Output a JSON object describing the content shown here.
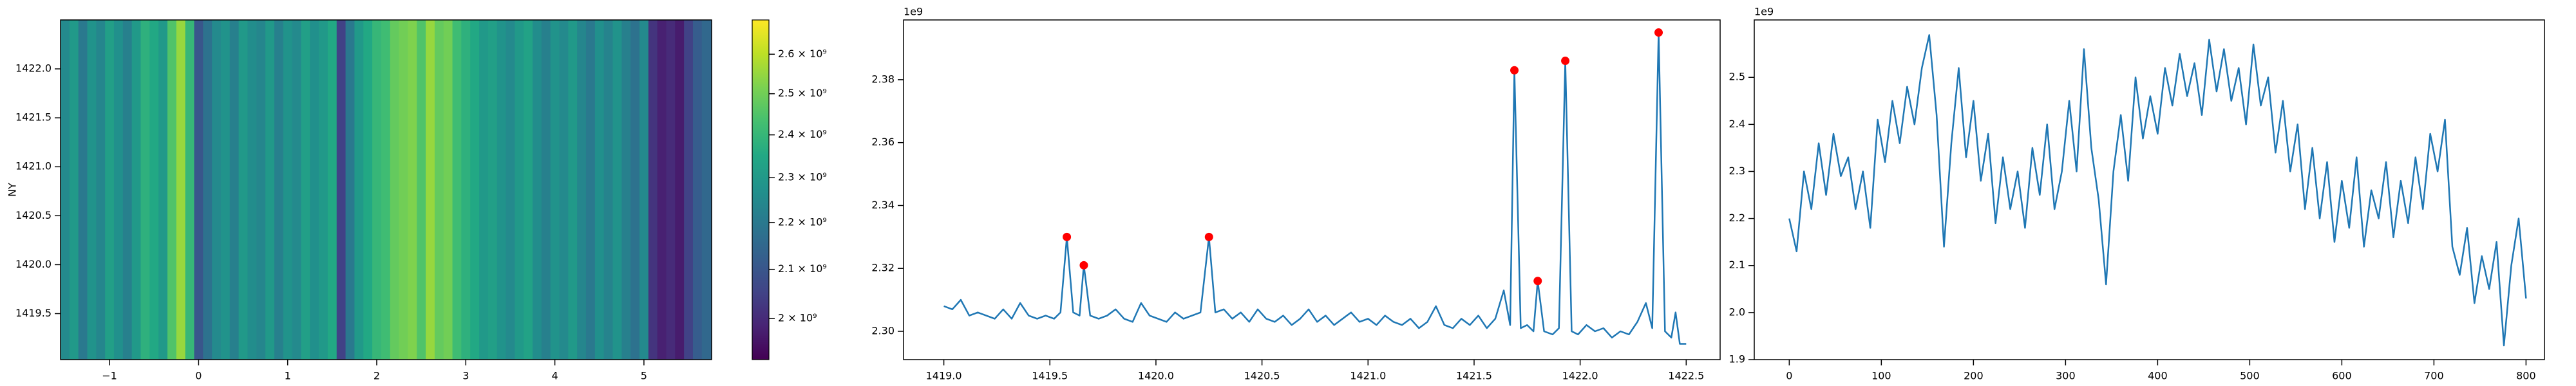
{
  "chart_data": [
    {
      "type": "heatmap",
      "ylabel": "NY",
      "x": [
        -1.5,
        -1.4,
        -1.3,
        -1.2,
        -1.1,
        -1.0,
        -0.9,
        -0.8,
        -0.7,
        -0.6,
        -0.5,
        -0.4,
        -0.3,
        -0.2,
        -0.1,
        0.0,
        0.1,
        0.2,
        0.3,
        0.4,
        0.5,
        0.6,
        0.7,
        0.8,
        0.9,
        1.0,
        1.1,
        1.2,
        1.3,
        1.4,
        1.5,
        1.6,
        1.7,
        1.8,
        1.9,
        2.0,
        2.1,
        2.2,
        2.3,
        2.4,
        2.5,
        2.6,
        2.7,
        2.8,
        2.9,
        3.0,
        3.1,
        3.2,
        3.3,
        3.4,
        3.5,
        3.6,
        3.7,
        3.8,
        3.9,
        4.0,
        4.1,
        4.2,
        4.3,
        4.4,
        4.5,
        4.6,
        4.7,
        4.8,
        4.9,
        5.0,
        5.1,
        5.2,
        5.3,
        5.4,
        5.5,
        5.6,
        5.7
      ],
      "values": [
        2250000000.0,
        2300000000.0,
        2200000000.0,
        2280000000.0,
        2240000000.0,
        2320000000.0,
        2270000000.0,
        2220000000.0,
        2300000000.0,
        2380000000.0,
        2350000000.0,
        2300000000.0,
        2450000000.0,
        2550000000.0,
        2400000000.0,
        2100000000.0,
        2180000000.0,
        2250000000.0,
        2280000000.0,
        2220000000.0,
        2300000000.0,
        2260000000.0,
        2240000000.0,
        2300000000.0,
        2220000000.0,
        2280000000.0,
        2250000000.0,
        2320000000.0,
        2270000000.0,
        2300000000.0,
        2350000000.0,
        2050000000.0,
        2200000000.0,
        2300000000.0,
        2350000000.0,
        2400000000.0,
        2420000000.0,
        2480000000.0,
        2500000000.0,
        2520000000.0,
        2450000000.0,
        2550000000.0,
        2480000000.0,
        2500000000.0,
        2420000000.0,
        2380000000.0,
        2350000000.0,
        2300000000.0,
        2320000000.0,
        2280000000.0,
        2250000000.0,
        2300000000.0,
        2330000000.0,
        2260000000.0,
        2220000000.0,
        2280000000.0,
        2250000000.0,
        2300000000.0,
        2240000000.0,
        2200000000.0,
        2270000000.0,
        2230000000.0,
        2280000000.0,
        2220000000.0,
        2180000000.0,
        2250000000.0,
        2020000000.0,
        1980000000.0,
        2000000000.0,
        1970000000.0,
        2050000000.0,
        2120000000.0,
        2150000000.0
      ],
      "xlim": [
        -1.55,
        5.76
      ],
      "xticks": [
        {
          "value": -1,
          "label": "−1"
        },
        0,
        1,
        2,
        3,
        4,
        5
      ],
      "ylim": [
        1419.03,
        1422.5
      ],
      "yticks": [
        1419.5,
        {
          "value": 1420,
          "label": "1420.0"
        },
        1420.5,
        {
          "value": 1421,
          "label": "1421.0"
        },
        1421.5,
        {
          "value": 1422,
          "label": "1422.0"
        }
      ],
      "colorbar": {
        "colormap": "viridis",
        "scale": "log",
        "lim": [
          1920000000.0,
          2690000000.0
        ],
        "ticks": [
          {
            "value": 2000000000.0,
            "label": "2 × 10⁹"
          },
          {
            "value": 2100000000.0,
            "label": "2.1 × 10⁹"
          },
          {
            "value": 2200000000.0,
            "label": "2.2 × 10⁹"
          },
          {
            "value": 2300000000.0,
            "label": "2.3 × 10⁹"
          },
          {
            "value": 2400000000.0,
            "label": "2.4 × 10⁹"
          },
          {
            "value": 2500000000.0,
            "label": "2.5 × 10⁹"
          },
          {
            "value": 2600000000.0,
            "label": "2.6 × 10⁹"
          }
        ]
      }
    },
    {
      "type": "line",
      "offset_text": "1e9",
      "xlim": [
        1418.81,
        1422.66
      ],
      "xticks": [
        {
          "value": 1419,
          "label": "1419.0"
        },
        1419.5,
        {
          "value": 1420,
          "label": "1420.0"
        },
        1420.5,
        {
          "value": 1421,
          "label": "1421.0"
        },
        1421.5,
        {
          "value": 1422,
          "label": "1422.0"
        },
        1422.5
      ],
      "ylim": [
        2291000000.0,
        2399000000.0
      ],
      "yticks": [
        {
          "value": 2300000000.0,
          "label": "2.30"
        },
        {
          "value": 2320000000.0,
          "label": "2.32"
        },
        {
          "value": 2340000000.0,
          "label": "2.34"
        },
        {
          "value": 2360000000.0,
          "label": "2.36"
        },
        {
          "value": 2380000000.0,
          "label": "2.38"
        }
      ],
      "series": [
        {
          "color": "#1f77b4",
          "x": [
            1419.0,
            1419.04,
            1419.08,
            1419.12,
            1419.16,
            1419.2,
            1419.24,
            1419.28,
            1419.32,
            1419.36,
            1419.4,
            1419.44,
            1419.48,
            1419.52,
            1419.55,
            1419.58,
            1419.61,
            1419.64,
            1419.66,
            1419.69,
            1419.73,
            1419.77,
            1419.81,
            1419.85,
            1419.89,
            1419.93,
            1419.97,
            1420.01,
            1420.05,
            1420.09,
            1420.13,
            1420.17,
            1420.21,
            1420.25,
            1420.28,
            1420.32,
            1420.36,
            1420.4,
            1420.44,
            1420.48,
            1420.52,
            1420.56,
            1420.6,
            1420.64,
            1420.68,
            1420.72,
            1420.76,
            1420.8,
            1420.84,
            1420.88,
            1420.92,
            1420.96,
            1421.0,
            1421.04,
            1421.08,
            1421.12,
            1421.16,
            1421.2,
            1421.24,
            1421.28,
            1421.32,
            1421.36,
            1421.4,
            1421.44,
            1421.48,
            1421.52,
            1421.56,
            1421.6,
            1421.64,
            1421.67,
            1421.69,
            1421.72,
            1421.75,
            1421.78,
            1421.8,
            1421.83,
            1421.87,
            1421.9,
            1421.93,
            1421.96,
            1421.99,
            1422.03,
            1422.07,
            1422.11,
            1422.15,
            1422.19,
            1422.23,
            1422.27,
            1422.31,
            1422.34,
            1422.37,
            1422.4,
            1422.43,
            1422.45,
            1422.47,
            1422.5
          ],
          "values": [
            2308000000.0,
            2307000000.0,
            2310000000.0,
            2305000000.0,
            2306000000.0,
            2305000000.0,
            2304000000.0,
            2307000000.0,
            2304000000.0,
            2309000000.0,
            2305000000.0,
            2304000000.0,
            2305000000.0,
            2304000000.0,
            2306000000.0,
            2330000000.0,
            2306000000.0,
            2305000000.0,
            2321000000.0,
            2305000000.0,
            2304000000.0,
            2305000000.0,
            2307000000.0,
            2304000000.0,
            2303000000.0,
            2309000000.0,
            2305000000.0,
            2304000000.0,
            2303000000.0,
            2306000000.0,
            2304000000.0,
            2305000000.0,
            2306000000.0,
            2330000000.0,
            2306000000.0,
            2307000000.0,
            2304000000.0,
            2306000000.0,
            2303000000.0,
            2307000000.0,
            2304000000.0,
            2303000000.0,
            2305000000.0,
            2302000000.0,
            2304000000.0,
            2307000000.0,
            2303000000.0,
            2305000000.0,
            2302000000.0,
            2304000000.0,
            2306000000.0,
            2303000000.0,
            2304000000.0,
            2302000000.0,
            2305000000.0,
            2303000000.0,
            2302000000.0,
            2304000000.0,
            2301000000.0,
            2303000000.0,
            2308000000.0,
            2302000000.0,
            2301000000.0,
            2304000000.0,
            2302000000.0,
            2305000000.0,
            2301000000.0,
            2304000000.0,
            2313000000.0,
            2302000000.0,
            2383000000.0,
            2301000000.0,
            2302000000.0,
            2300000000.0,
            2316000000.0,
            2300000000.0,
            2299000000.0,
            2301000000.0,
            2386000000.0,
            2300000000.0,
            2299000000.0,
            2302000000.0,
            2300000000.0,
            2301000000.0,
            2298000000.0,
            2300000000.0,
            2299000000.0,
            2303000000.0,
            2309000000.0,
            2301000000.0,
            2395000000.0,
            2300000000.0,
            2298000000.0,
            2306000000.0,
            2296000000.0,
            2296000000.0
          ]
        },
        {
          "color": "red",
          "marker": "o",
          "x": [
            1419.58,
            1419.66,
            1420.25,
            1421.69,
            1421.8,
            1421.93,
            1422.37
          ],
          "values": [
            2330000000.0,
            2321000000.0,
            2330000000.0,
            2383000000.0,
            2316000000.0,
            2386000000.0,
            2395000000.0
          ]
        }
      ]
    },
    {
      "type": "line",
      "offset_text": "1e9",
      "xlim": [
        -38,
        820
      ],
      "xticks": [
        0,
        100,
        200,
        300,
        400,
        500,
        600,
        700,
        800
      ],
      "ylim": [
        1900000000.0,
        2622000000.0
      ],
      "yticks": [
        {
          "value": 1900000000.0,
          "label": "1.9"
        },
        {
          "value": 2000000000.0,
          "label": "2.0"
        },
        {
          "value": 2100000000.0,
          "label": "2.1"
        },
        {
          "value": 2200000000.0,
          "label": "2.2"
        },
        {
          "value": 2300000000.0,
          "label": "2.3"
        },
        {
          "value": 2400000000.0,
          "label": "2.4"
        },
        {
          "value": 2500000000.0,
          "label": "2.5"
        }
      ],
      "series": [
        {
          "color": "#1f77b4",
          "x": [
            0,
            8,
            16,
            24,
            32,
            40,
            48,
            56,
            64,
            72,
            80,
            88,
            96,
            104,
            112,
            120,
            128,
            136,
            144,
            152,
            160,
            168,
            176,
            184,
            192,
            200,
            208,
            216,
            224,
            232,
            240,
            248,
            256,
            264,
            272,
            280,
            288,
            296,
            304,
            312,
            320,
            328,
            336,
            344,
            352,
            360,
            368,
            376,
            384,
            392,
            400,
            408,
            416,
            424,
            432,
            440,
            448,
            456,
            464,
            472,
            480,
            488,
            496,
            504,
            512,
            520,
            528,
            536,
            544,
            552,
            560,
            568,
            576,
            584,
            592,
            600,
            608,
            616,
            624,
            632,
            640,
            648,
            656,
            664,
            672,
            680,
            688,
            696,
            704,
            712,
            720,
            728,
            736,
            744,
            752,
            760,
            768,
            776,
            784,
            792,
            800
          ],
          "values": [
            2200000000.0,
            2130000000.0,
            2300000000.0,
            2220000000.0,
            2360000000.0,
            2250000000.0,
            2380000000.0,
            2290000000.0,
            2330000000.0,
            2220000000.0,
            2300000000.0,
            2180000000.0,
            2410000000.0,
            2320000000.0,
            2450000000.0,
            2360000000.0,
            2480000000.0,
            2400000000.0,
            2520000000.0,
            2590000000.0,
            2420000000.0,
            2140000000.0,
            2360000000.0,
            2520000000.0,
            2330000000.0,
            2450000000.0,
            2280000000.0,
            2380000000.0,
            2190000000.0,
            2330000000.0,
            2220000000.0,
            2300000000.0,
            2180000000.0,
            2350000000.0,
            2250000000.0,
            2400000000.0,
            2220000000.0,
            2300000000.0,
            2450000000.0,
            2300000000.0,
            2560000000.0,
            2350000000.0,
            2240000000.0,
            2060000000.0,
            2300000000.0,
            2420000000.0,
            2280000000.0,
            2500000000.0,
            2370000000.0,
            2460000000.0,
            2380000000.0,
            2520000000.0,
            2440000000.0,
            2550000000.0,
            2460000000.0,
            2530000000.0,
            2420000000.0,
            2580000000.0,
            2470000000.0,
            2560000000.0,
            2450000000.0,
            2520000000.0,
            2400000000.0,
            2570000000.0,
            2440000000.0,
            2500000000.0,
            2340000000.0,
            2450000000.0,
            2300000000.0,
            2400000000.0,
            2220000000.0,
            2350000000.0,
            2200000000.0,
            2320000000.0,
            2150000000.0,
            2280000000.0,
            2180000000.0,
            2330000000.0,
            2140000000.0,
            2260000000.0,
            2200000000.0,
            2320000000.0,
            2160000000.0,
            2280000000.0,
            2190000000.0,
            2330000000.0,
            2220000000.0,
            2380000000.0,
            2300000000.0,
            2410000000.0,
            2140000000.0,
            2080000000.0,
            2180000000.0,
            2020000000.0,
            2120000000.0,
            2050000000.0,
            2150000000.0,
            1930000000.0,
            2100000000.0,
            2200000000.0,
            2030000000.0
          ]
        }
      ]
    }
  ]
}
